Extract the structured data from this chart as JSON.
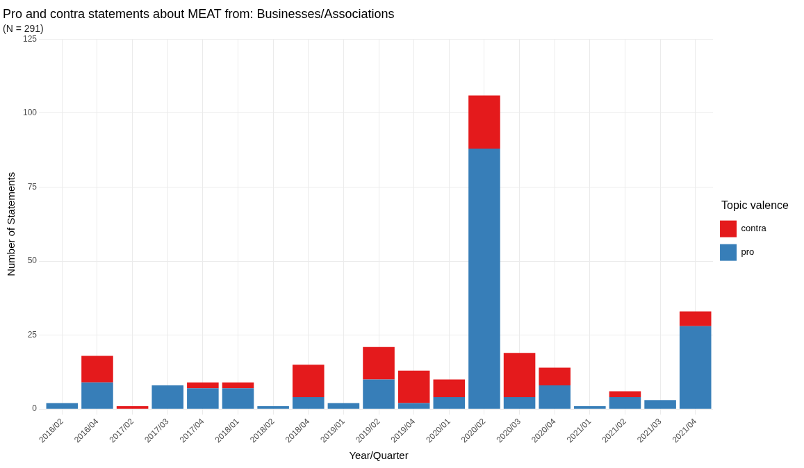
{
  "chart_data": {
    "type": "bar",
    "title": "Pro and contra statements about MEAT from: Businesses/Associations",
    "subtitle": "(N = 291)",
    "xlabel": "Year/Quarter",
    "ylabel": "Number of Statements",
    "legend_title": "Topic valence",
    "categories": [
      "2016/02",
      "2016/04",
      "2017/02",
      "2017/03",
      "2017/04",
      "2018/01",
      "2018/02",
      "2018/04",
      "2019/01",
      "2019/02",
      "2019/04",
      "2020/01",
      "2020/02",
      "2020/03",
      "2020/04",
      "2021/01",
      "2021/02",
      "2021/03",
      "2021/04"
    ],
    "series": [
      {
        "name": "pro",
        "color": "#377eb8",
        "values": [
          2,
          9,
          0,
          8,
          7,
          7,
          1,
          4,
          2,
          10,
          2,
          4,
          88,
          4,
          8,
          1,
          4,
          3,
          28
        ]
      },
      {
        "name": "contra",
        "color": "#e41a1c",
        "values": [
          0,
          9,
          1,
          0,
          2,
          2,
          0,
          11,
          0,
          11,
          11,
          6,
          18,
          15,
          6,
          0,
          2,
          0,
          5
        ]
      }
    ],
    "stacked": true,
    "ylim": [
      0,
      125
    ],
    "yticks": [
      0,
      25,
      50,
      75,
      100,
      125
    ],
    "grid": true,
    "legend": "right"
  }
}
